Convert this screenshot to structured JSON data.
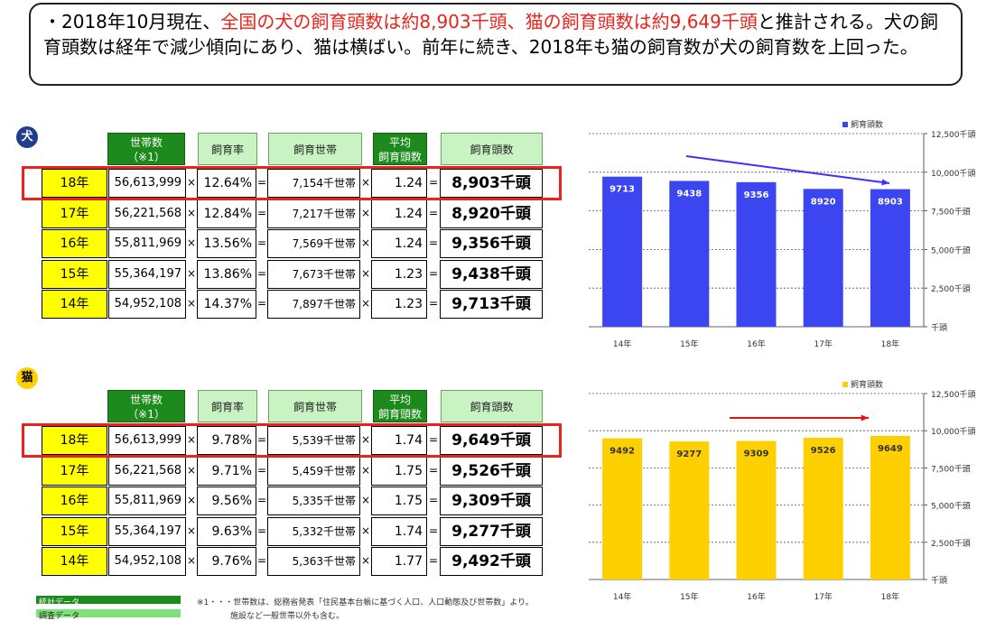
{
  "summary": {
    "p1": "・2018年10月現在、",
    "p2": "全国の犬の飼育頭数は約8,903千頭、猫の飼育頭数は約9,649千頭",
    "p3": "と推計される。犬の飼育頭数は経年で減少傾向にあり、猫は横ばい。前年に続き、2018年も猫の飼育数が犬の飼育数を上回った。"
  },
  "headers": {
    "households": "世帯数",
    "households_note": "（※1）",
    "rate": "飼育率",
    "keeping_households": "飼育世帯",
    "avg": "平均",
    "avg2": "飼育頭数",
    "count": "飼育頭数"
  },
  "ops": {
    "times": "×",
    "eq": "="
  },
  "dog": {
    "badge": "犬",
    "rows": [
      {
        "year": "18年",
        "households": "56,613,999",
        "rate": "12.64%",
        "keeping": "7,154千世帯",
        "avg": "1.24",
        "count": "8,903千頭"
      },
      {
        "year": "17年",
        "households": "56,221,568",
        "rate": "12.84%",
        "keeping": "7,217千世帯",
        "avg": "1.24",
        "count": "8,920千頭"
      },
      {
        "year": "16年",
        "households": "55,811,969",
        "rate": "13.56%",
        "keeping": "7,569千世帯",
        "avg": "1.24",
        "count": "9,356千頭"
      },
      {
        "year": "15年",
        "households": "55,364,197",
        "rate": "13.86%",
        "keeping": "7,673千世帯",
        "avg": "1.23",
        "count": "9,438千頭"
      },
      {
        "year": "14年",
        "households": "54,952,108",
        "rate": "14.37%",
        "keeping": "7,897千世帯",
        "avg": "1.23",
        "count": "9,713千頭"
      }
    ]
  },
  "cat": {
    "badge": "猫",
    "rows": [
      {
        "year": "18年",
        "households": "56,613,999",
        "rate": "9.78%",
        "keeping": "5,539千世帯",
        "avg": "1.74",
        "count": "9,649千頭"
      },
      {
        "year": "17年",
        "households": "56,221,568",
        "rate": "9.71%",
        "keeping": "5,459千世帯",
        "avg": "1.75",
        "count": "9,526千頭"
      },
      {
        "year": "16年",
        "households": "55,811,969",
        "rate": "9.56%",
        "keeping": "5,335千世帯",
        "avg": "1.75",
        "count": "9,309千頭"
      },
      {
        "year": "15年",
        "households": "55,364,197",
        "rate": "9.63%",
        "keeping": "5,332千世帯",
        "avg": "1.74",
        "count": "9,277千頭"
      },
      {
        "year": "14年",
        "households": "54,952,108",
        "rate": "9.76%",
        "keeping": "5,363千世帯",
        "avg": "1.77",
        "count": "9,492千頭"
      }
    ]
  },
  "footer": {
    "legend1": "統計データ",
    "legend2": "調査データ",
    "note1": "※1・・・世帯数は、総務省発表「住民基本台帳に基づく人口、人口動態及び世帯数」より。",
    "note2": "施設など一般世帯以外も含む。"
  },
  "colors": {
    "dog_bar": "#3b45f0",
    "cat_bar": "#ffd000",
    "highlight": "#e8231b",
    "dog_arrow": "#3b30ff",
    "cat_arrow": "#ee1111"
  },
  "chart_data": [
    {
      "type": "bar",
      "legend": "飼育頭数",
      "categories": [
        "14年",
        "15年",
        "16年",
        "17年",
        "18年"
      ],
      "values": [
        9713,
        9438,
        9356,
        8920,
        8903
      ],
      "ylim": [
        0,
        12500
      ],
      "yticks": [
        "12,500千頭",
        "10,000千頭",
        "7,500千頭",
        "5,000千頭",
        "2,500千頭",
        "千頭"
      ],
      "ytick_values": [
        12500,
        10000,
        7500,
        5000,
        2500,
        0
      ]
    },
    {
      "type": "bar",
      "legend": "飼育頭数",
      "categories": [
        "14年",
        "15年",
        "16年",
        "17年",
        "18年"
      ],
      "values": [
        9492,
        9277,
        9309,
        9526,
        9649
      ],
      "ylim": [
        0,
        12500
      ],
      "yticks": [
        "12,500千頭",
        "10,000千頭",
        "7,500千頭",
        "5,000千頭",
        "2,500千頭",
        "千頭"
      ],
      "ytick_values": [
        12500,
        10000,
        7500,
        5000,
        2500,
        0
      ]
    }
  ]
}
